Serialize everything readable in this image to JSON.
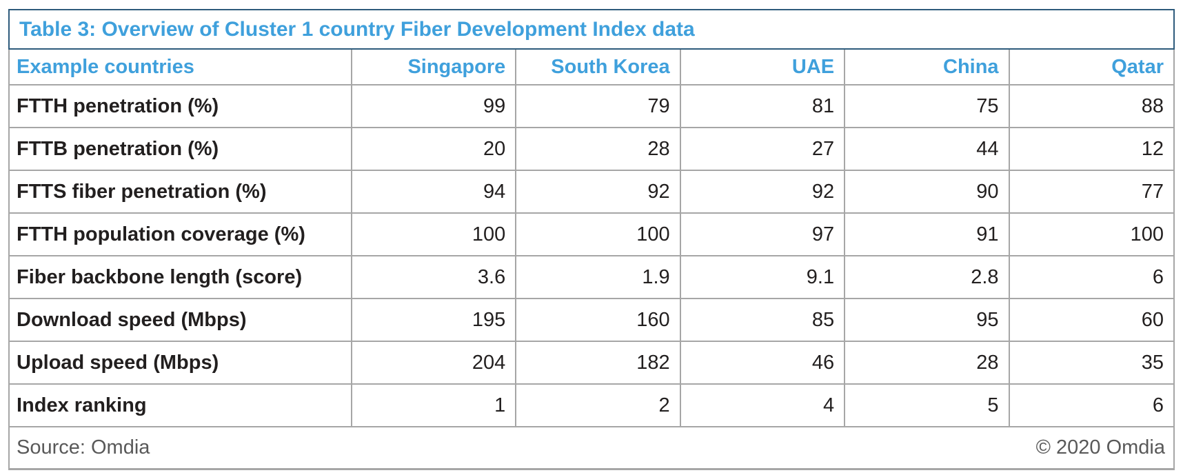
{
  "colors": {
    "accent_blue": "#3fa0dc",
    "title_border_navy": "#2d5a7b",
    "grid_gray": "#a6a6a6",
    "body_text": "#221f1f",
    "footer_gray": "#595959"
  },
  "chart_data": {
    "type": "table",
    "title": "Table 3: Overview of Cluster 1 country Fiber Development Index data",
    "corner_label": "Example countries",
    "columns": [
      "Singapore",
      "South Korea",
      "UAE",
      "China",
      "Qatar"
    ],
    "rows": [
      {
        "label": "FTTH penetration (%)",
        "values": [
          "99",
          "79",
          "81",
          "75",
          "88"
        ]
      },
      {
        "label": "FTTB penetration (%)",
        "values": [
          "20",
          "28",
          "27",
          "44",
          "12"
        ]
      },
      {
        "label": "FTTS fiber penetration (%)",
        "values": [
          "94",
          "92",
          "92",
          "90",
          "77"
        ]
      },
      {
        "label": "FTTH population coverage (%)",
        "values": [
          "100",
          "100",
          "97",
          "91",
          "100"
        ]
      },
      {
        "label": "Fiber backbone length (score)",
        "values": [
          "3.6",
          "1.9",
          "9.1",
          "2.8",
          "6"
        ]
      },
      {
        "label": "Download speed (Mbps)",
        "values": [
          "195",
          "160",
          "85",
          "95",
          "60"
        ]
      },
      {
        "label": "Upload speed (Mbps)",
        "values": [
          "204",
          "182",
          "46",
          "28",
          "35"
        ]
      },
      {
        "label": "Index ranking",
        "values": [
          "1",
          "2",
          "4",
          "5",
          "6"
        ]
      }
    ],
    "source": "Source: Omdia",
    "copyright": "© 2020 Omdia"
  }
}
